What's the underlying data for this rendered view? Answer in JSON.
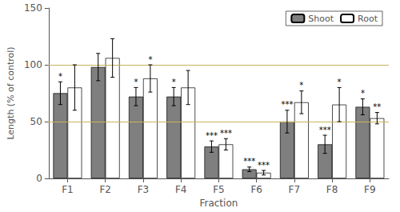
{
  "chart_data": {
    "type": "bar",
    "xlabel": "Fraction",
    "ylabel": "Length (% of control)",
    "categories": [
      "F1",
      "F2",
      "F3",
      "F4",
      "F5",
      "F6",
      "F7",
      "F8",
      "F9"
    ],
    "series": [
      {
        "name": "Shoot",
        "color": "#7f7f7f",
        "values": [
          75,
          98,
          72,
          72,
          28,
          8,
          50,
          30,
          63
        ],
        "errors": [
          10,
          12,
          8,
          8,
          5,
          2,
          10,
          8,
          7
        ],
        "annotations": [
          "*",
          null,
          "*",
          "*",
          "***",
          "***",
          "***",
          "***",
          "*"
        ]
      },
      {
        "name": "Root",
        "color": "#ffffff",
        "values": [
          80,
          106,
          88,
          80,
          30,
          5,
          67,
          65,
          53
        ],
        "errors": [
          20,
          17,
          12,
          15,
          5,
          2,
          10,
          15,
          5
        ],
        "annotations": [
          null,
          null,
          "*",
          null,
          "***",
          "***",
          "*",
          "*",
          "**"
        ]
      }
    ],
    "hlines": [
      {
        "value": 50,
        "color": "#c8b45a"
      },
      {
        "value": 100,
        "color": "#c8b45a"
      }
    ],
    "ylim": [
      0,
      150
    ],
    "yticks": [
      0,
      50,
      100,
      150
    ],
    "grid": false,
    "legend": "upper right"
  }
}
